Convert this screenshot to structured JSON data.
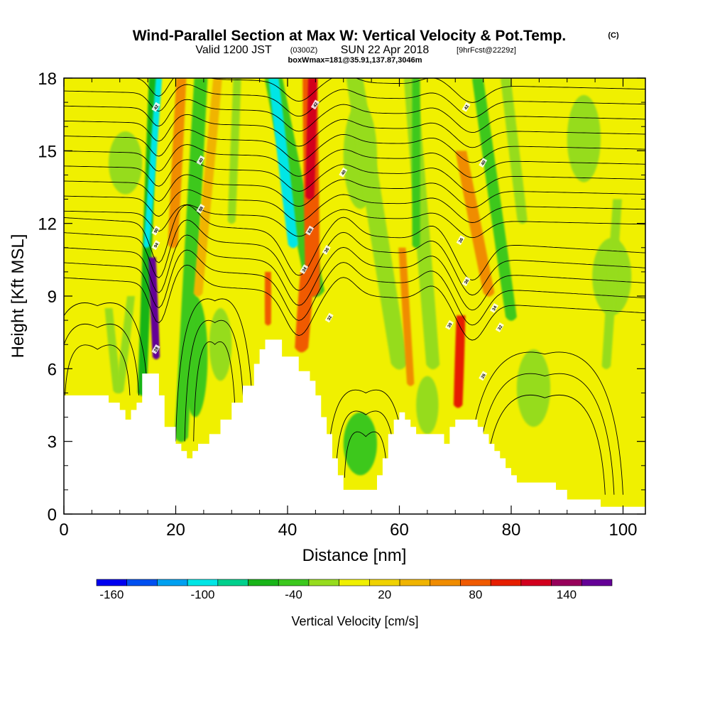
{
  "title": {
    "main": "Wind-Parallel Section at Max W: Vertical Velocity & Pot.Temp.",
    "copyright": "(C)",
    "valid_prefix": "Valid 1200 JST",
    "utc": "(0300Z)",
    "date": "SUN 22 Apr 2018",
    "forecast": "[9hrFcst@2229z]",
    "box": "boxWmax=181@35.91,137.87,3046m"
  },
  "chart_data": {
    "type": "heatmap",
    "xlabel": "Distance [nm]",
    "ylabel": "Height [Kft MSL]",
    "xlim": [
      0,
      104
    ],
    "ylim": [
      0,
      18
    ],
    "x_ticks": [
      0,
      20,
      40,
      60,
      80,
      100
    ],
    "y_ticks": [
      0,
      3,
      6,
      9,
      12,
      15,
      18
    ],
    "x_tick_labels": [
      "0",
      "20",
      "40",
      "60",
      "80",
      "100"
    ],
    "y_tick_labels": [
      "0",
      "3",
      "6",
      "9",
      "12",
      "15",
      "18"
    ],
    "grid": false,
    "background_level": 10,
    "terrain": [
      [
        0,
        4.9
      ],
      [
        6,
        4.9
      ],
      [
        8,
        4.6
      ],
      [
        10,
        4.3
      ],
      [
        11,
        3.9
      ],
      [
        12,
        4.3
      ],
      [
        13,
        4.6
      ],
      [
        14,
        5.8
      ],
      [
        16,
        5.8
      ],
      [
        17,
        4.9
      ],
      [
        18,
        3.6
      ],
      [
        20,
        2.9
      ],
      [
        21,
        2.6
      ],
      [
        22,
        2.3
      ],
      [
        23,
        2.6
      ],
      [
        24,
        2.9
      ],
      [
        26,
        3.3
      ],
      [
        28,
        3.9
      ],
      [
        30,
        4.6
      ],
      [
        32,
        5.3
      ],
      [
        34,
        6.2
      ],
      [
        35,
        6.8
      ],
      [
        36,
        7.2
      ],
      [
        38,
        7.2
      ],
      [
        39,
        6.5
      ],
      [
        41,
        6.5
      ],
      [
        42,
        5.9
      ],
      [
        44,
        5.5
      ],
      [
        45,
        4.9
      ],
      [
        46,
        4.0
      ],
      [
        47,
        3.3
      ],
      [
        48,
        2.3
      ],
      [
        49,
        1.6
      ],
      [
        50,
        1.0
      ],
      [
        55,
        1.0
      ],
      [
        56,
        1.6
      ],
      [
        57,
        2.3
      ],
      [
        58,
        3.3
      ],
      [
        59,
        3.9
      ],
      [
        60,
        4.2
      ],
      [
        61,
        3.9
      ],
      [
        62,
        3.6
      ],
      [
        63,
        3.3
      ],
      [
        65,
        3.3
      ],
      [
        67,
        3.3
      ],
      [
        68,
        2.9
      ],
      [
        69,
        3.6
      ],
      [
        70,
        3.9
      ],
      [
        73,
        3.9
      ],
      [
        74,
        3.6
      ],
      [
        75,
        3.3
      ],
      [
        76,
        2.9
      ],
      [
        77,
        2.6
      ],
      [
        78,
        2.3
      ],
      [
        79,
        1.9
      ],
      [
        80,
        1.6
      ],
      [
        81,
        1.3
      ],
      [
        86,
        1.3
      ],
      [
        88,
        1.0
      ],
      [
        90,
        0.6
      ],
      [
        95,
        0.6
      ],
      [
        96,
        0.3
      ],
      [
        104,
        0.3
      ]
    ],
    "updrafts_downdrafts": [
      {
        "top": [
          16,
          18
        ],
        "bottom": [
          14,
          4.9
        ],
        "width": 1.6,
        "value": -60
      },
      {
        "top": [
          17,
          18
        ],
        "bottom": [
          14.8,
          11
        ],
        "width": 1.1,
        "value": -95
      },
      {
        "top": [
          21,
          18
        ],
        "bottom": [
          19.5,
          11
        ],
        "width": 1.8,
        "value": 60
      },
      {
        "top": [
          24.5,
          18
        ],
        "bottom": [
          21,
          3
        ],
        "width": 2.4,
        "value": -45
      },
      {
        "top": [
          27.5,
          18
        ],
        "bottom": [
          24,
          9
        ],
        "width": 1.6,
        "value": 45
      },
      {
        "top": [
          15.8,
          10.6
        ],
        "bottom": [
          16.5,
          6.4
        ],
        "width": 1.3,
        "value": 150
      },
      {
        "top": [
          15.8,
          10
        ],
        "bottom": [
          16.5,
          6.8
        ],
        "width": 0.8,
        "value": 175
      },
      {
        "top": [
          37.5,
          18
        ],
        "bottom": [
          45,
          9
        ],
        "width": 3.2,
        "value": -45
      },
      {
        "top": [
          37.5,
          18
        ],
        "bottom": [
          41,
          11
        ],
        "width": 1.8,
        "value": -95
      },
      {
        "top": [
          44,
          18
        ],
        "bottom": [
          44.5,
          9
        ],
        "width": 2.6,
        "value": 70
      },
      {
        "top": [
          44.5,
          18
        ],
        "bottom": [
          44,
          13
        ],
        "width": 1.6,
        "value": 125
      },
      {
        "top": [
          36.5,
          10
        ],
        "bottom": [
          36.5,
          7.8
        ],
        "width": 1.1,
        "value": 80
      },
      {
        "top": [
          43.5,
          10
        ],
        "bottom": [
          42.5,
          6.7
        ],
        "width": 2.4,
        "value": 80
      },
      {
        "top": [
          52,
          18
        ],
        "bottom": [
          60,
          6
        ],
        "width": 3.0,
        "value": -30
      },
      {
        "top": [
          62,
          18
        ],
        "bottom": [
          66,
          6
        ],
        "width": 2.4,
        "value": -30
      },
      {
        "top": [
          74,
          18
        ],
        "bottom": [
          80,
          8
        ],
        "width": 2.0,
        "value": -45
      },
      {
        "top": [
          71,
          15
        ],
        "bottom": [
          76,
          9
        ],
        "width": 2.0,
        "value": 60
      },
      {
        "top": [
          60.5,
          11
        ],
        "bottom": [
          62,
          5.3
        ],
        "width": 1.3,
        "value": 60
      },
      {
        "top": [
          71,
          8.2
        ],
        "bottom": [
          70.5,
          4.4
        ],
        "width": 1.6,
        "value": 100
      },
      {
        "top": [
          79,
          18
        ],
        "bottom": [
          82,
          12
        ],
        "width": 1.8,
        "value": -30
      },
      {
        "top": [
          63,
          18
        ],
        "bottom": [
          63,
          11
        ],
        "width": 1.4,
        "value": -45
      },
      {
        "top": [
          31,
          18
        ],
        "bottom": [
          30,
          12
        ],
        "width": 1.4,
        "value": -30
      },
      {
        "top": [
          8,
          8.5
        ],
        "bottom": [
          9.5,
          5
        ],
        "width": 1.4,
        "value": -30
      },
      {
        "top": [
          12,
          9
        ],
        "bottom": [
          10,
          5
        ],
        "width": 1.4,
        "value": -30
      },
      {
        "top": [
          99,
          13
        ],
        "bottom": [
          97,
          6
        ],
        "width": 1.6,
        "value": -30
      }
    ],
    "pools": [
      {
        "x": 23.5,
        "y": 6.5,
        "rx": 2.2,
        "ry": 2.5,
        "value": -45
      },
      {
        "x": 53,
        "y": 2.9,
        "rx": 3.0,
        "ry": 1.3,
        "value": -45
      },
      {
        "x": 84,
        "y": 5.2,
        "rx": 3,
        "ry": 1.6,
        "value": -30
      },
      {
        "x": 98,
        "y": 9.8,
        "rx": 3.5,
        "ry": 1.6,
        "value": -30
      },
      {
        "x": 11,
        "y": 14.5,
        "rx": 3,
        "ry": 1.3,
        "value": -30
      },
      {
        "x": 53,
        "y": 14.8,
        "rx": 3,
        "ry": 2.2,
        "value": -30
      },
      {
        "x": 93,
        "y": 15.5,
        "rx": 3,
        "ry": 1.8,
        "value": -30
      },
      {
        "x": 28,
        "y": 7,
        "rx": 2,
        "ry": 1.5,
        "value": -30
      },
      {
        "x": 65,
        "y": 4.5,
        "rx": 2,
        "ry": 1.2,
        "value": -30
      }
    ],
    "contour_labels": [
      {
        "x": 16.5,
        "y": 16.8,
        "text": "42"
      },
      {
        "x": 24.5,
        "y": 14.6,
        "text": "40"
      },
      {
        "x": 24.5,
        "y": 12.6,
        "text": "88"
      },
      {
        "x": 16.5,
        "y": 11.7,
        "text": "90"
      },
      {
        "x": 16.5,
        "y": 11.1,
        "text": "94"
      },
      {
        "x": 16.5,
        "y": 6.8,
        "text": "28"
      },
      {
        "x": 45,
        "y": 16.9,
        "text": "42"
      },
      {
        "x": 50,
        "y": 14.1,
        "text": "40"
      },
      {
        "x": 44,
        "y": 11.7,
        "text": "88"
      },
      {
        "x": 47,
        "y": 10.9,
        "text": "36"
      },
      {
        "x": 43,
        "y": 10.1,
        "text": "34"
      },
      {
        "x": 47.5,
        "y": 8.1,
        "text": "32"
      },
      {
        "x": 72,
        "y": 16.8,
        "text": "42"
      },
      {
        "x": 75,
        "y": 14.5,
        "text": "40"
      },
      {
        "x": 71,
        "y": 11.3,
        "text": "36"
      },
      {
        "x": 72,
        "y": 9.6,
        "text": "36"
      },
      {
        "x": 77,
        "y": 8.5,
        "text": "34"
      },
      {
        "x": 78,
        "y": 7.7,
        "text": "32"
      },
      {
        "x": 69,
        "y": 7.8,
        "text": "30"
      },
      {
        "x": 75,
        "y": 5.7,
        "text": "26"
      }
    ],
    "colorbar": {
      "title": "Vertical Velocity [cm/s]",
      "levels": [
        -170,
        -150,
        -130,
        -110,
        -90,
        -70,
        -50,
        -30,
        -10,
        10,
        30,
        50,
        70,
        90,
        110,
        130,
        150,
        170
      ],
      "colors": [
        "#0000f0",
        "#0050f0",
        "#00a0f0",
        "#00e6e6",
        "#00d08c",
        "#19b419",
        "#3cc81e",
        "#96dc1e",
        "#f0f000",
        "#f0d200",
        "#f0b400",
        "#f08c00",
        "#f05a00",
        "#e61e00",
        "#d2001e",
        "#96005a",
        "#640096"
      ],
      "tick_values": [
        -160,
        -100,
        -40,
        20,
        80,
        140
      ],
      "tick_labels": [
        "-160",
        "-100",
        "-40",
        "20",
        "80",
        "140"
      ]
    }
  }
}
